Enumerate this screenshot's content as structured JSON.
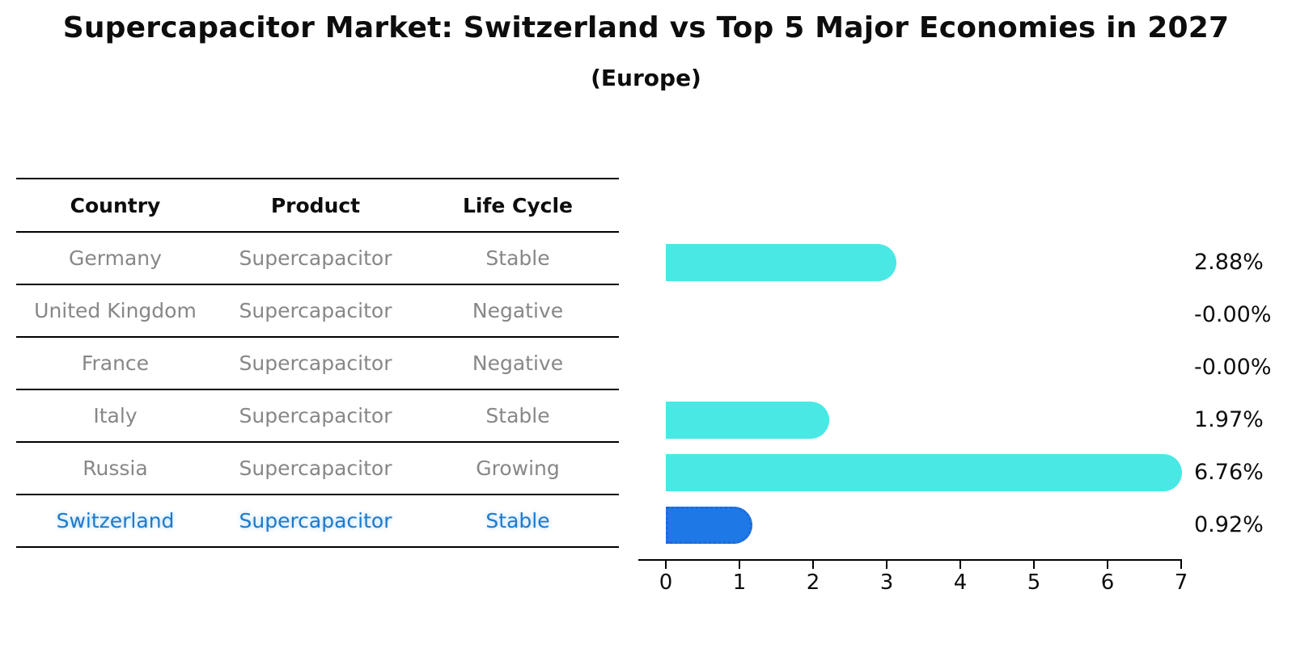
{
  "title": "Supercapacitor Market: Switzerland vs Top 5 Major Economies in 2027",
  "subtitle": "(Europe)",
  "table": {
    "headers": [
      "Country",
      "Product",
      "Life Cycle"
    ],
    "rows": [
      {
        "country": "Germany",
        "product": "Supercapacitor",
        "life_cycle": "Stable"
      },
      {
        "country": "United Kingdom",
        "product": "Supercapacitor",
        "life_cycle": "Negative"
      },
      {
        "country": "France",
        "product": "Supercapacitor",
        "life_cycle": "Negative"
      },
      {
        "country": "Italy",
        "product": "Supercapacitor",
        "life_cycle": "Stable"
      },
      {
        "country": "Russia",
        "product": "Supercapacitor",
        "life_cycle": "Growing"
      },
      {
        "country": "Switzerland",
        "product": "Supercapacitor",
        "life_cycle": "Stable"
      }
    ],
    "highlighted_row": "Switzerland"
  },
  "chart_data": {
    "type": "bar",
    "orientation": "horizontal",
    "title": "Supercapacitor Market: Switzerland vs Top 5 Major Economies in 2027 (Europe)",
    "categories": [
      "Germany",
      "United Kingdom",
      "France",
      "Italy",
      "Russia",
      "Switzerland"
    ],
    "values": [
      2.88,
      -0.0,
      -0.0,
      1.97,
      6.76,
      0.92
    ],
    "value_labels": [
      "2.88%",
      "-0.00%",
      "-0.00%",
      "1.97%",
      "6.76%",
      "0.92%"
    ],
    "xlim": [
      0,
      7
    ],
    "x_ticks": [
      "0",
      "1",
      "2",
      "3",
      "4",
      "5",
      "6",
      "7"
    ],
    "grid": false,
    "legend": "none",
    "bar_color": "#49E8E5",
    "highlight_bar_color": "#1E78E5",
    "highlight_index": 5
  },
  "colors": {
    "row_text": "#878787",
    "highlight_text": "#1E7AC9",
    "axis": "#000000",
    "title_text": "#0D0D0D"
  }
}
